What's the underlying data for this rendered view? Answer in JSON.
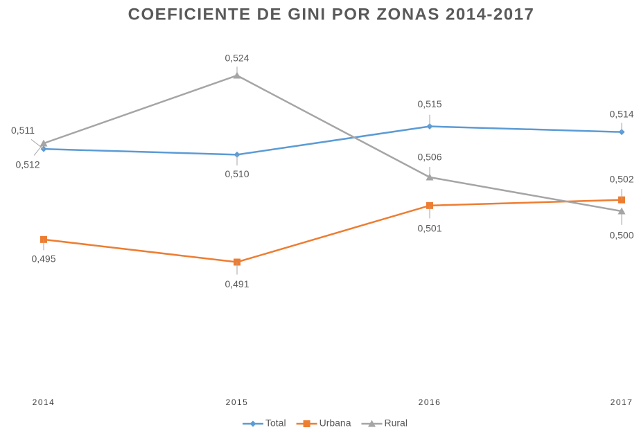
{
  "chart_data": {
    "type": "line",
    "title": "COEFICIENTE DE GINI POR ZONAS 2014-2017",
    "categories": [
      "2014",
      "2015",
      "2016",
      "2017"
    ],
    "ylim": [
      0.47,
      0.53
    ],
    "legend": "bottom",
    "series": [
      {
        "name": "Total",
        "color": "#5b9bd5",
        "marker": "diamond",
        "values": [
          0.511,
          0.51,
          0.515,
          0.514
        ],
        "value_labels": [
          "0,511",
          "0,510",
          "0,515",
          "0,514"
        ]
      },
      {
        "name": "Urbana",
        "color": "#ed7d31",
        "marker": "square",
        "values": [
          0.495,
          0.491,
          0.501,
          0.502
        ],
        "value_labels": [
          "0,495",
          "0,491",
          "0,501",
          "0,502"
        ]
      },
      {
        "name": "Rural",
        "color": "#a5a5a5",
        "marker": "triangle",
        "values": [
          0.512,
          0.524,
          0.506,
          0.5
        ],
        "value_labels": [
          "0,512",
          "0,524",
          "0,506",
          "0,500"
        ]
      }
    ]
  }
}
